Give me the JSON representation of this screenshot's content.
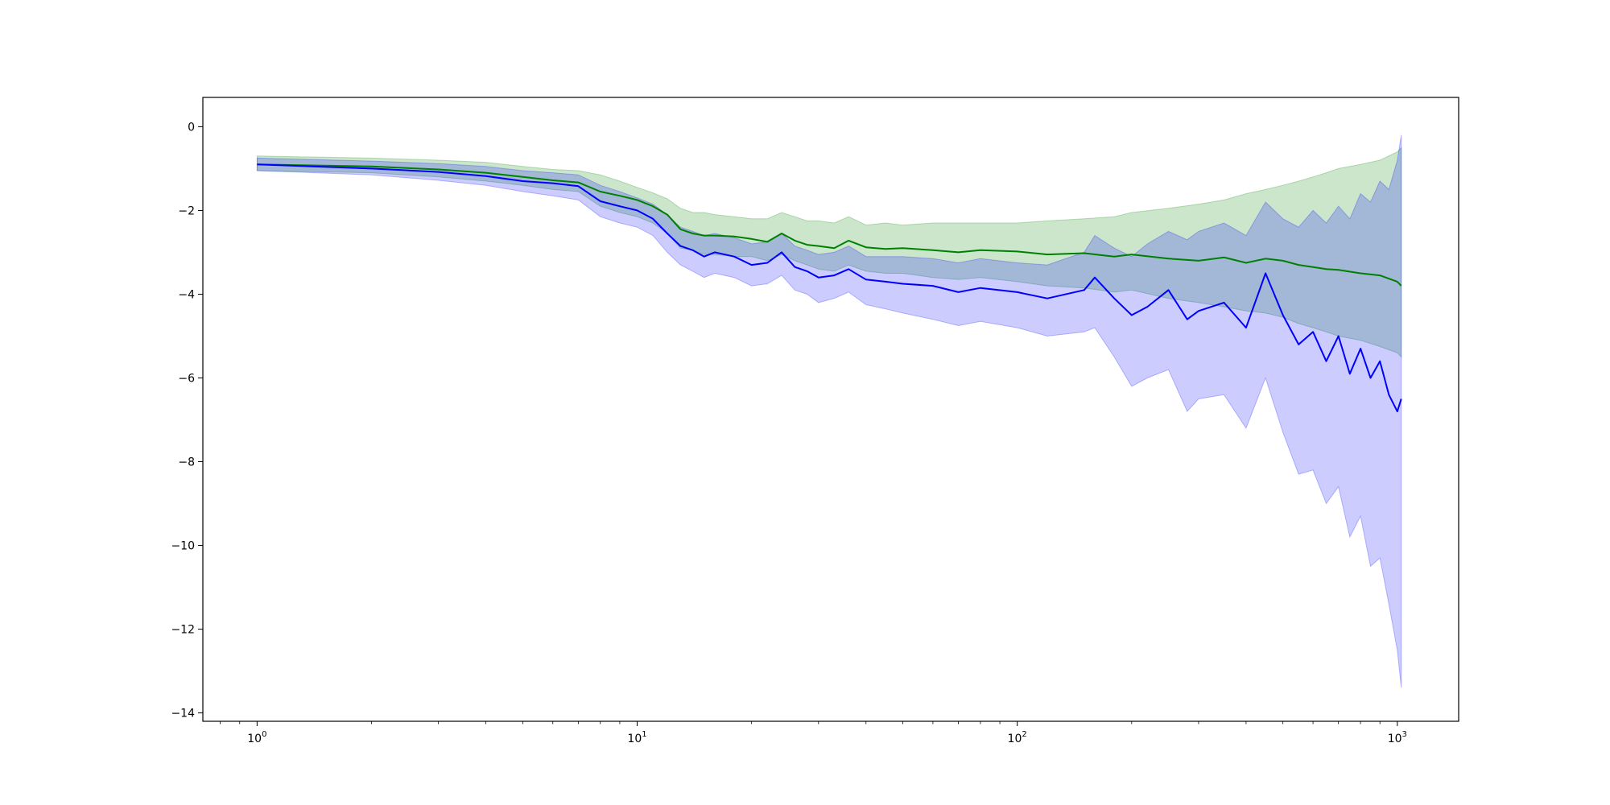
{
  "chart_data": {
    "type": "line",
    "title": "",
    "xlabel": "",
    "ylabel": "",
    "x_scale": "log",
    "xlim": [
      0.72,
      1450
    ],
    "ylim": [
      -14.2,
      0.7
    ],
    "x_ticks": [
      {
        "value": 1,
        "base": "10",
        "exp": "0"
      },
      {
        "value": 10,
        "base": "10",
        "exp": "1"
      },
      {
        "value": 100,
        "base": "10",
        "exp": "2"
      },
      {
        "value": 1000,
        "base": "10",
        "exp": "3"
      }
    ],
    "y_ticks": [
      {
        "value": 0,
        "label": "0"
      },
      {
        "value": -2,
        "label": "−2"
      },
      {
        "value": -4,
        "label": "−4"
      },
      {
        "value": -6,
        "label": "−6"
      },
      {
        "value": -8,
        "label": "−8"
      },
      {
        "value": -10,
        "label": "−10"
      },
      {
        "value": -12,
        "label": "−12"
      },
      {
        "value": -14,
        "label": "−14"
      }
    ],
    "grid": false,
    "legend": "none",
    "series": [
      {
        "color": "#008000",
        "band_color": "#008000",
        "x": [
          1,
          2,
          3,
          4,
          5,
          6,
          7,
          8,
          9,
          10,
          11,
          12,
          13,
          14,
          15,
          16,
          18,
          20,
          22,
          24,
          26,
          28,
          30,
          33,
          36,
          40,
          45,
          50,
          60,
          70,
          80,
          100,
          120,
          150,
          180,
          200,
          250,
          300,
          350,
          400,
          450,
          500,
          550,
          600,
          650,
          700,
          800,
          900,
          1000,
          1024
        ],
        "mean": [
          -0.9,
          -0.95,
          -1.02,
          -1.1,
          -1.2,
          -1.28,
          -1.33,
          -1.55,
          -1.65,
          -1.75,
          -1.9,
          -2.1,
          -2.45,
          -2.55,
          -2.6,
          -2.6,
          -2.62,
          -2.68,
          -2.75,
          -2.55,
          -2.72,
          -2.82,
          -2.85,
          -2.9,
          -2.72,
          -2.88,
          -2.92,
          -2.9,
          -2.95,
          -3.0,
          -2.95,
          -2.98,
          -3.05,
          -3.02,
          -3.1,
          -3.05,
          -3.15,
          -3.2,
          -3.12,
          -3.25,
          -3.15,
          -3.2,
          -3.3,
          -3.35,
          -3.4,
          -3.42,
          -3.5,
          -3.55,
          -3.7,
          -3.8
        ],
        "upper": [
          -0.7,
          -0.75,
          -0.8,
          -0.85,
          -0.95,
          -1.02,
          -1.05,
          -1.15,
          -1.3,
          -1.45,
          -1.58,
          -1.72,
          -1.95,
          -2.05,
          -2.05,
          -2.1,
          -2.15,
          -2.2,
          -2.2,
          -2.05,
          -2.15,
          -2.25,
          -2.25,
          -2.3,
          -2.15,
          -2.35,
          -2.3,
          -2.35,
          -2.3,
          -2.3,
          -2.3,
          -2.3,
          -2.25,
          -2.2,
          -2.15,
          -2.05,
          -1.95,
          -1.85,
          -1.75,
          -1.6,
          -1.5,
          -1.4,
          -1.3,
          -1.2,
          -1.1,
          -1.0,
          -0.9,
          -0.8,
          -0.6,
          -0.5
        ],
        "lower": [
          -1.05,
          -1.1,
          -1.2,
          -1.3,
          -1.4,
          -1.5,
          -1.55,
          -1.9,
          -2.05,
          -2.15,
          -2.3,
          -2.55,
          -2.9,
          -2.95,
          -3.05,
          -3.05,
          -3.1,
          -3.1,
          -3.2,
          -3.05,
          -3.2,
          -3.3,
          -3.4,
          -3.45,
          -3.3,
          -3.45,
          -3.5,
          -3.5,
          -3.6,
          -3.65,
          -3.6,
          -3.7,
          -3.8,
          -3.85,
          -3.95,
          -3.9,
          -4.1,
          -4.2,
          -4.3,
          -4.4,
          -4.45,
          -4.55,
          -4.7,
          -4.8,
          -4.9,
          -5.0,
          -5.1,
          -5.25,
          -5.4,
          -5.5
        ]
      },
      {
        "color": "#0000ff",
        "band_color": "#0000ff",
        "x": [
          1,
          2,
          3,
          4,
          5,
          6,
          7,
          8,
          9,
          10,
          11,
          12,
          13,
          14,
          15,
          16,
          18,
          20,
          22,
          24,
          26,
          28,
          30,
          33,
          36,
          40,
          45,
          50,
          60,
          70,
          80,
          100,
          120,
          150,
          160,
          180,
          200,
          220,
          250,
          280,
          300,
          350,
          400,
          450,
          500,
          550,
          600,
          650,
          700,
          750,
          800,
          850,
          900,
          950,
          1000,
          1024
        ],
        "mean": [
          -0.9,
          -1.0,
          -1.08,
          -1.18,
          -1.3,
          -1.35,
          -1.42,
          -1.78,
          -1.9,
          -2.0,
          -2.2,
          -2.55,
          -2.85,
          -2.95,
          -3.1,
          -3.0,
          -3.1,
          -3.3,
          -3.25,
          -3.0,
          -3.35,
          -3.45,
          -3.6,
          -3.55,
          -3.4,
          -3.65,
          -3.7,
          -3.75,
          -3.8,
          -3.95,
          -3.85,
          -3.95,
          -4.1,
          -3.9,
          -3.6,
          -4.1,
          -4.5,
          -4.3,
          -3.9,
          -4.6,
          -4.4,
          -4.2,
          -4.8,
          -3.5,
          -4.5,
          -5.2,
          -4.9,
          -5.6,
          -5.0,
          -5.9,
          -5.3,
          -6.0,
          -5.6,
          -6.4,
          -6.8,
          -6.5
        ],
        "upper": [
          -0.75,
          -0.82,
          -0.88,
          -0.95,
          -1.05,
          -1.1,
          -1.15,
          -1.4,
          -1.55,
          -1.7,
          -1.85,
          -2.1,
          -2.4,
          -2.5,
          -2.6,
          -2.55,
          -2.65,
          -2.8,
          -2.75,
          -2.55,
          -2.85,
          -2.95,
          -3.05,
          -3.0,
          -2.85,
          -3.1,
          -3.1,
          -3.1,
          -3.15,
          -3.25,
          -3.15,
          -3.25,
          -3.3,
          -3.0,
          -2.6,
          -2.9,
          -3.1,
          -2.8,
          -2.5,
          -2.7,
          -2.5,
          -2.3,
          -2.6,
          -1.8,
          -2.2,
          -2.4,
          -2.0,
          -2.3,
          -1.9,
          -2.2,
          -1.6,
          -1.8,
          -1.3,
          -1.5,
          -0.8,
          -0.2
        ],
        "lower": [
          -1.05,
          -1.15,
          -1.28,
          -1.4,
          -1.55,
          -1.65,
          -1.75,
          -2.15,
          -2.3,
          -2.4,
          -2.6,
          -3.0,
          -3.3,
          -3.45,
          -3.6,
          -3.5,
          -3.6,
          -3.8,
          -3.75,
          -3.55,
          -3.9,
          -4.0,
          -4.2,
          -4.1,
          -3.95,
          -4.25,
          -4.35,
          -4.45,
          -4.6,
          -4.75,
          -4.65,
          -4.8,
          -5.0,
          -4.9,
          -4.8,
          -5.5,
          -6.2,
          -6.0,
          -5.8,
          -6.8,
          -6.5,
          -6.4,
          -7.2,
          -6.0,
          -7.3,
          -8.3,
          -8.2,
          -9.0,
          -8.6,
          -9.8,
          -9.3,
          -10.5,
          -10.3,
          -11.4,
          -12.5,
          -13.4
        ]
      }
    ]
  }
}
